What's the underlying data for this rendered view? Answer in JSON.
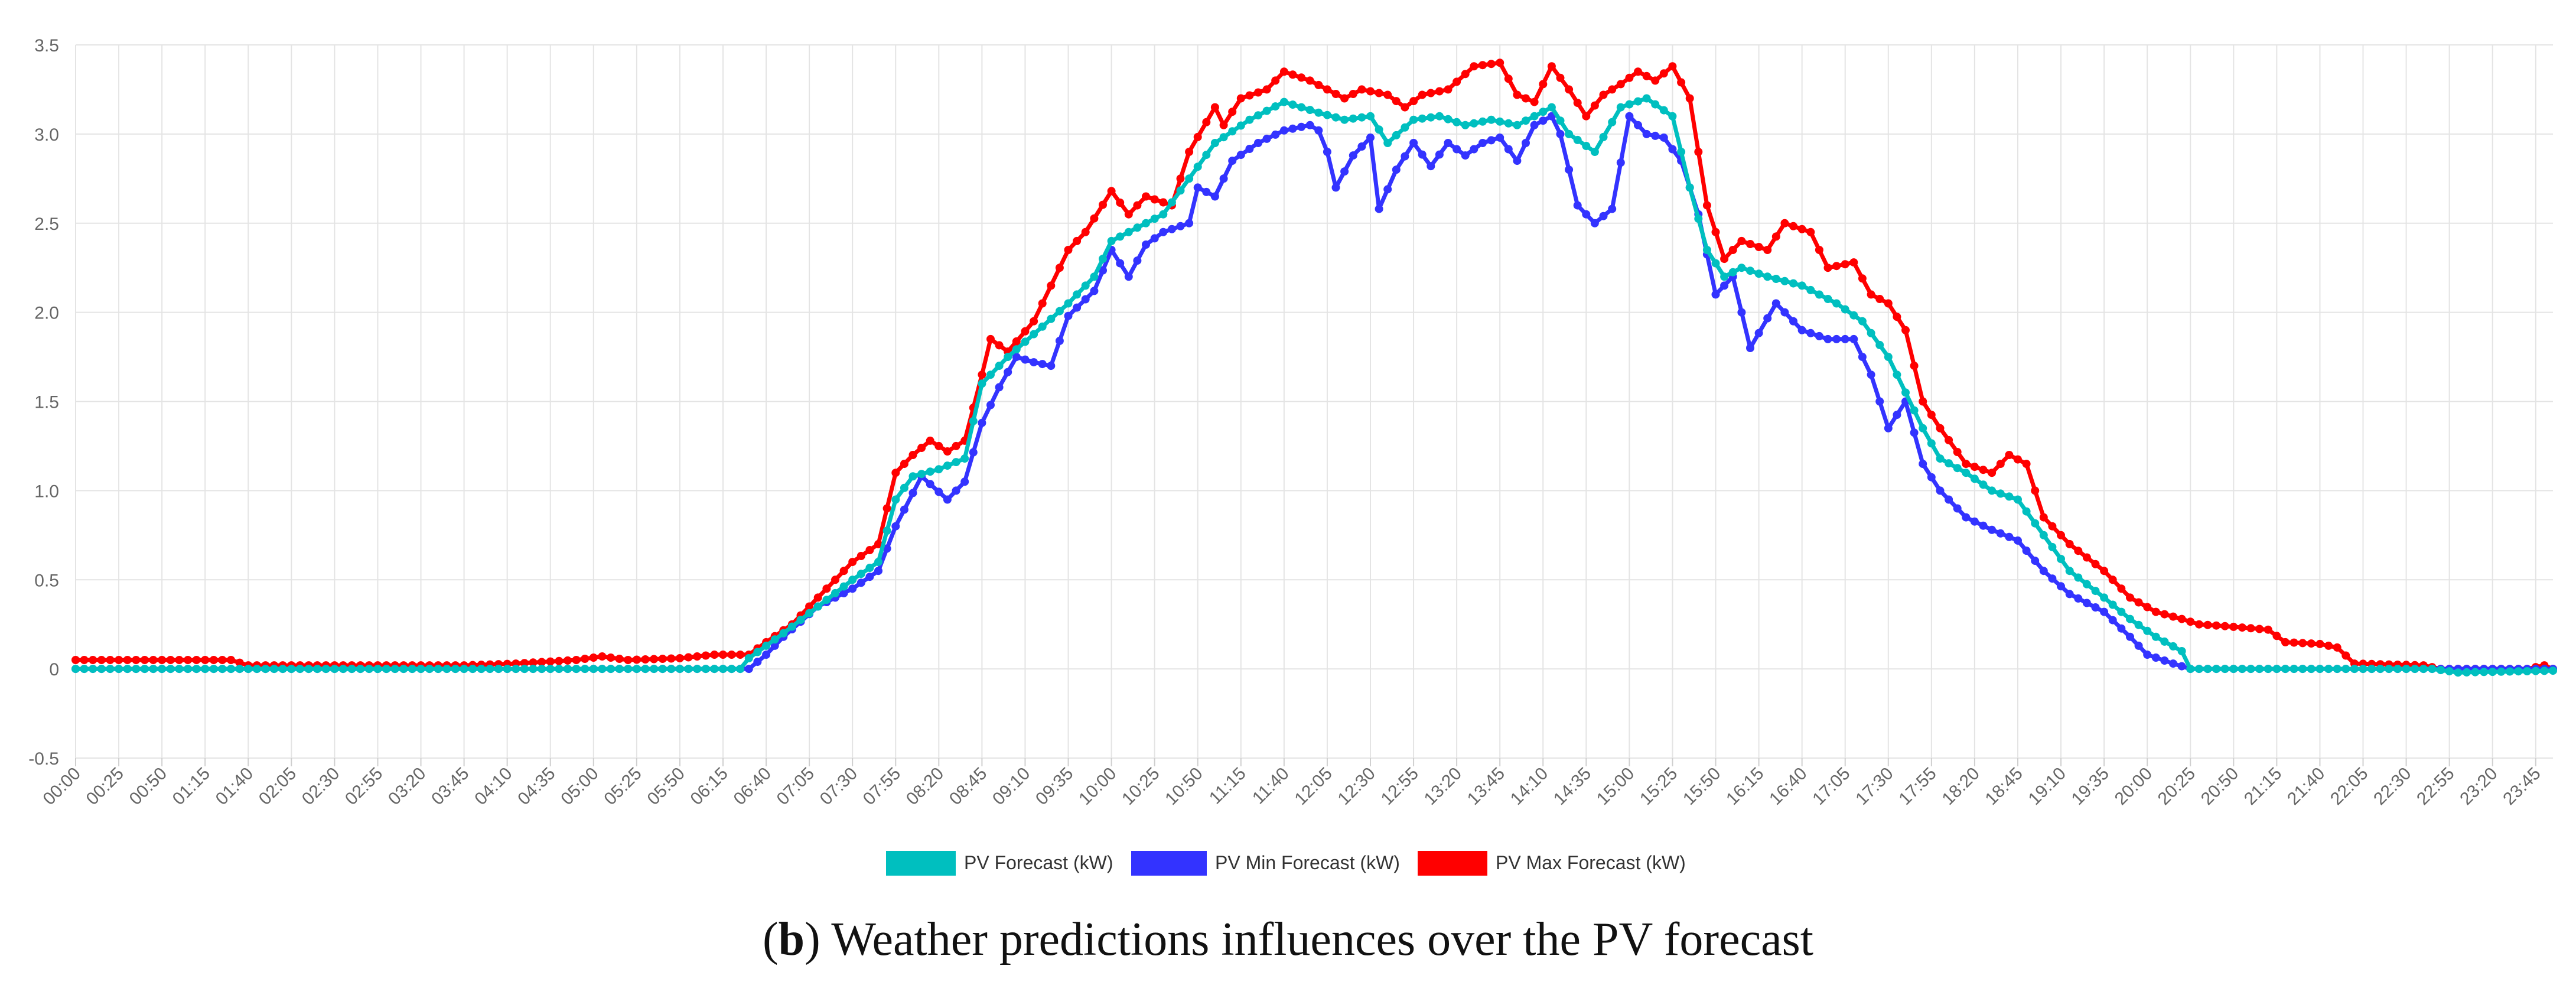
{
  "caption": {
    "label": "b",
    "text": "Weather predictions influences over the PV forecast"
  },
  "chart_data": {
    "type": "line",
    "title": "",
    "xlabel": "",
    "ylabel": "",
    "ylim": [
      -0.5,
      3.5
    ],
    "yticks": [
      "-0.5",
      "0",
      "0.5",
      "1.0",
      "1.5",
      "2.0",
      "2.5",
      "3.0",
      "3.5"
    ],
    "x_tick_labels": [
      "00:00",
      "00:25",
      "00:50",
      "01:15",
      "01:40",
      "02:05",
      "02:30",
      "02:55",
      "03:20",
      "03:45",
      "04:10",
      "04:35",
      "05:00",
      "05:25",
      "05:50",
      "06:15",
      "06:40",
      "07:05",
      "07:30",
      "07:55",
      "08:20",
      "08:45",
      "09:10",
      "09:35",
      "10:00",
      "10:25",
      "10:50",
      "11:15",
      "11:40",
      "12:05",
      "12:30",
      "12:55",
      "13:20",
      "13:45",
      "14:10",
      "14:35",
      "15:00",
      "15:25",
      "15:50",
      "16:15",
      "16:40",
      "17:05",
      "17:30",
      "17:55",
      "18:20",
      "18:45",
      "19:10",
      "19:35",
      "20:00",
      "20:25",
      "20:50",
      "21:15",
      "21:40",
      "22:05",
      "22:30",
      "22:55",
      "23:20",
      "23:45"
    ],
    "x_interval_minutes": 5,
    "grid": true,
    "legend_position": "bottom",
    "series": [
      {
        "name": "PV Forecast (kW)",
        "color": "#00bfbf",
        "points": [
          [
            "00:00",
            0.0
          ],
          [
            "06:25",
            0.0
          ],
          [
            "06:30",
            0.06
          ],
          [
            "06:50",
            0.2
          ],
          [
            "07:10",
            0.35
          ],
          [
            "07:30",
            0.5
          ],
          [
            "07:45",
            0.6
          ],
          [
            "07:55",
            0.95
          ],
          [
            "08:05",
            1.08
          ],
          [
            "08:20",
            1.12
          ],
          [
            "08:35",
            1.18
          ],
          [
            "08:45",
            1.6
          ],
          [
            "09:00",
            1.75
          ],
          [
            "09:20",
            1.92
          ],
          [
            "09:35",
            2.05
          ],
          [
            "09:50",
            2.2
          ],
          [
            "10:00",
            2.4
          ],
          [
            "10:10",
            2.45
          ],
          [
            "10:30",
            2.55
          ],
          [
            "10:45",
            2.75
          ],
          [
            "11:00",
            2.95
          ],
          [
            "11:20",
            3.08
          ],
          [
            "11:40",
            3.18
          ],
          [
            "12:00",
            3.12
          ],
          [
            "12:15",
            3.08
          ],
          [
            "12:30",
            3.1
          ],
          [
            "12:40",
            2.95
          ],
          [
            "12:55",
            3.08
          ],
          [
            "13:10",
            3.1
          ],
          [
            "13:25",
            3.05
          ],
          [
            "13:40",
            3.08
          ],
          [
            "13:55",
            3.05
          ],
          [
            "14:05",
            3.1
          ],
          [
            "14:15",
            3.15
          ],
          [
            "14:25",
            3.0
          ],
          [
            "14:40",
            2.9
          ],
          [
            "14:55",
            3.15
          ],
          [
            "15:10",
            3.2
          ],
          [
            "15:25",
            3.1
          ],
          [
            "15:35",
            2.7
          ],
          [
            "15:45",
            2.35
          ],
          [
            "15:55",
            2.2
          ],
          [
            "16:05",
            2.25
          ],
          [
            "16:20",
            2.2
          ],
          [
            "16:40",
            2.15
          ],
          [
            "17:00",
            2.05
          ],
          [
            "17:15",
            1.95
          ],
          [
            "17:30",
            1.75
          ],
          [
            "17:40",
            1.55
          ],
          [
            "17:50",
            1.35
          ],
          [
            "18:00",
            1.18
          ],
          [
            "18:15",
            1.1
          ],
          [
            "18:30",
            1.0
          ],
          [
            "18:45",
            0.95
          ],
          [
            "19:00",
            0.75
          ],
          [
            "19:15",
            0.55
          ],
          [
            "19:35",
            0.4
          ],
          [
            "19:50",
            0.28
          ],
          [
            "20:05",
            0.18
          ],
          [
            "20:20",
            0.1
          ],
          [
            "20:25",
            0.0
          ],
          [
            "22:45",
            0.0
          ],
          [
            "23:00",
            -0.02
          ],
          [
            "23:55",
            -0.01
          ]
        ]
      },
      {
        "name": "PV Min Forecast (kW)",
        "color": "#3333ff",
        "points": [
          [
            "00:00",
            0.0
          ],
          [
            "06:30",
            0.0
          ],
          [
            "06:40",
            0.08
          ],
          [
            "06:50",
            0.18
          ],
          [
            "07:10",
            0.35
          ],
          [
            "07:30",
            0.45
          ],
          [
            "07:45",
            0.55
          ],
          [
            "07:55",
            0.8
          ],
          [
            "08:10",
            1.08
          ],
          [
            "08:25",
            0.95
          ],
          [
            "08:35",
            1.05
          ],
          [
            "08:45",
            1.38
          ],
          [
            "08:55",
            1.58
          ],
          [
            "09:05",
            1.75
          ],
          [
            "09:15",
            1.72
          ],
          [
            "09:25",
            1.7
          ],
          [
            "09:35",
            1.98
          ],
          [
            "09:50",
            2.12
          ],
          [
            "10:00",
            2.35
          ],
          [
            "10:10",
            2.2
          ],
          [
            "10:20",
            2.38
          ],
          [
            "10:30",
            2.45
          ],
          [
            "10:45",
            2.5
          ],
          [
            "10:50",
            2.7
          ],
          [
            "11:00",
            2.65
          ],
          [
            "11:10",
            2.85
          ],
          [
            "11:25",
            2.95
          ],
          [
            "11:40",
            3.02
          ],
          [
            "11:55",
            3.05
          ],
          [
            "12:00",
            3.02
          ],
          [
            "12:05",
            2.9
          ],
          [
            "12:10",
            2.7
          ],
          [
            "12:20",
            2.88
          ],
          [
            "12:30",
            2.98
          ],
          [
            "12:35",
            2.58
          ],
          [
            "12:45",
            2.8
          ],
          [
            "12:55",
            2.95
          ],
          [
            "13:05",
            2.82
          ],
          [
            "13:15",
            2.95
          ],
          [
            "13:25",
            2.88
          ],
          [
            "13:35",
            2.95
          ],
          [
            "13:45",
            2.98
          ],
          [
            "13:55",
            2.85
          ],
          [
            "14:05",
            3.05
          ],
          [
            "14:15",
            3.1
          ],
          [
            "14:20",
            3.0
          ],
          [
            "14:30",
            2.6
          ],
          [
            "14:40",
            2.5
          ],
          [
            "14:50",
            2.58
          ],
          [
            "15:00",
            3.1
          ],
          [
            "15:10",
            3.0
          ],
          [
            "15:20",
            2.98
          ],
          [
            "15:30",
            2.85
          ],
          [
            "15:40",
            2.55
          ],
          [
            "15:50",
            2.1
          ],
          [
            "16:00",
            2.2
          ],
          [
            "16:10",
            1.8
          ],
          [
            "16:25",
            2.05
          ],
          [
            "16:40",
            1.9
          ],
          [
            "16:55",
            1.85
          ],
          [
            "17:10",
            1.85
          ],
          [
            "17:20",
            1.65
          ],
          [
            "17:30",
            1.35
          ],
          [
            "17:40",
            1.5
          ],
          [
            "17:50",
            1.15
          ],
          [
            "18:00",
            1.0
          ],
          [
            "18:15",
            0.85
          ],
          [
            "18:30",
            0.78
          ],
          [
            "18:45",
            0.72
          ],
          [
            "19:00",
            0.55
          ],
          [
            "19:15",
            0.42
          ],
          [
            "19:35",
            0.32
          ],
          [
            "19:50",
            0.18
          ],
          [
            "20:00",
            0.08
          ],
          [
            "20:15",
            0.03
          ],
          [
            "20:25",
            0.0
          ],
          [
            "23:50",
            0.0
          ]
        ]
      },
      {
        "name": "PV Max Forecast (kW)",
        "color": "#ff0000",
        "points": [
          [
            "00:00",
            0.05
          ],
          [
            "01:30",
            0.05
          ],
          [
            "01:40",
            0.02
          ],
          [
            "03:45",
            0.02
          ],
          [
            "04:15",
            0.03
          ],
          [
            "04:50",
            0.05
          ],
          [
            "05:05",
            0.07
          ],
          [
            "05:20",
            0.05
          ],
          [
            "05:50",
            0.06
          ],
          [
            "06:10",
            0.08
          ],
          [
            "06:30",
            0.08
          ],
          [
            "06:40",
            0.15
          ],
          [
            "06:55",
            0.25
          ],
          [
            "07:10",
            0.4
          ],
          [
            "07:30",
            0.6
          ],
          [
            "07:45",
            0.7
          ],
          [
            "07:55",
            1.1
          ],
          [
            "08:05",
            1.2
          ],
          [
            "08:15",
            1.28
          ],
          [
            "08:25",
            1.22
          ],
          [
            "08:35",
            1.28
          ],
          [
            "08:45",
            1.65
          ],
          [
            "08:50",
            1.85
          ],
          [
            "09:00",
            1.78
          ],
          [
            "09:15",
            1.95
          ],
          [
            "09:25",
            2.15
          ],
          [
            "09:35",
            2.35
          ],
          [
            "09:45",
            2.45
          ],
          [
            "10:00",
            2.68
          ],
          [
            "10:10",
            2.55
          ],
          [
            "10:20",
            2.65
          ],
          [
            "10:35",
            2.6
          ],
          [
            "10:45",
            2.9
          ],
          [
            "11:00",
            3.15
          ],
          [
            "11:05",
            3.05
          ],
          [
            "11:15",
            3.2
          ],
          [
            "11:30",
            3.25
          ],
          [
            "11:40",
            3.35
          ],
          [
            "11:55",
            3.3
          ],
          [
            "12:05",
            3.25
          ],
          [
            "12:15",
            3.2
          ],
          [
            "12:25",
            3.25
          ],
          [
            "12:40",
            3.22
          ],
          [
            "12:50",
            3.15
          ],
          [
            "13:00",
            3.22
          ],
          [
            "13:15",
            3.25
          ],
          [
            "13:30",
            3.38
          ],
          [
            "13:45",
            3.4
          ],
          [
            "13:55",
            3.22
          ],
          [
            "14:05",
            3.18
          ],
          [
            "14:15",
            3.38
          ],
          [
            "14:25",
            3.25
          ],
          [
            "14:35",
            3.1
          ],
          [
            "14:45",
            3.22
          ],
          [
            "14:55",
            3.28
          ],
          [
            "15:05",
            3.35
          ],
          [
            "15:15",
            3.3
          ],
          [
            "15:25",
            3.38
          ],
          [
            "15:35",
            3.2
          ],
          [
            "15:45",
            2.6
          ],
          [
            "15:55",
            2.3
          ],
          [
            "16:05",
            2.4
          ],
          [
            "16:20",
            2.35
          ],
          [
            "16:30",
            2.5
          ],
          [
            "16:45",
            2.45
          ],
          [
            "16:55",
            2.25
          ],
          [
            "17:10",
            2.28
          ],
          [
            "17:20",
            2.1
          ],
          [
            "17:30",
            2.05
          ],
          [
            "17:40",
            1.9
          ],
          [
            "17:50",
            1.5
          ],
          [
            "18:00",
            1.35
          ],
          [
            "18:15",
            1.15
          ],
          [
            "18:30",
            1.1
          ],
          [
            "18:40",
            1.2
          ],
          [
            "18:50",
            1.15
          ],
          [
            "19:00",
            0.85
          ],
          [
            "19:15",
            0.7
          ],
          [
            "19:35",
            0.55
          ],
          [
            "19:50",
            0.4
          ],
          [
            "20:05",
            0.32
          ],
          [
            "20:20",
            0.28
          ],
          [
            "20:30",
            0.25
          ],
          [
            "20:45",
            0.24
          ],
          [
            "21:10",
            0.22
          ],
          [
            "21:20",
            0.15
          ],
          [
            "21:40",
            0.14
          ],
          [
            "21:50",
            0.12
          ],
          [
            "22:00",
            0.03
          ],
          [
            "22:40",
            0.02
          ],
          [
            "22:50",
            0.0
          ],
          [
            "23:40",
            0.0
          ],
          [
            "23:50",
            0.02
          ],
          [
            "23:55",
            0.0
          ]
        ]
      }
    ]
  }
}
